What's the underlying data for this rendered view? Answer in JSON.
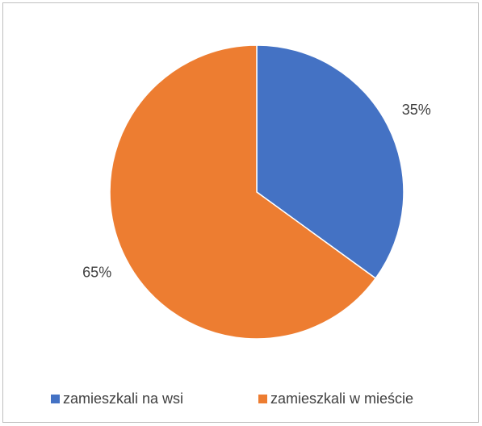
{
  "chart_data": {
    "type": "pie",
    "categories": [
      "zamieszkali na wsi",
      "zamieszkali w mieście"
    ],
    "values": [
      35,
      65
    ],
    "value_labels": [
      "35%",
      "65%"
    ],
    "colors": [
      "#4472c4",
      "#ed7d31"
    ],
    "legend": "bottom"
  }
}
